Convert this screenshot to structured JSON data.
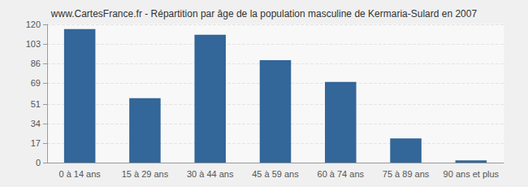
{
  "chart_data": {
    "type": "bar",
    "title": "www.CartesFrance.fr - Répartition par âge de la population masculine de Kermaria-Sulard en 2007",
    "categories": [
      "0 à 14 ans",
      "15 à 29 ans",
      "30 à 44 ans",
      "45 à 59 ans",
      "60 à 74 ans",
      "75 à 89 ans",
      "90 ans et plus"
    ],
    "values": [
      116,
      56,
      111,
      89,
      70,
      21,
      2
    ],
    "color": "#336699",
    "ylim": [
      0,
      120
    ],
    "yticks": [
      0,
      17,
      34,
      51,
      69,
      86,
      103,
      120
    ],
    "grid": true
  }
}
